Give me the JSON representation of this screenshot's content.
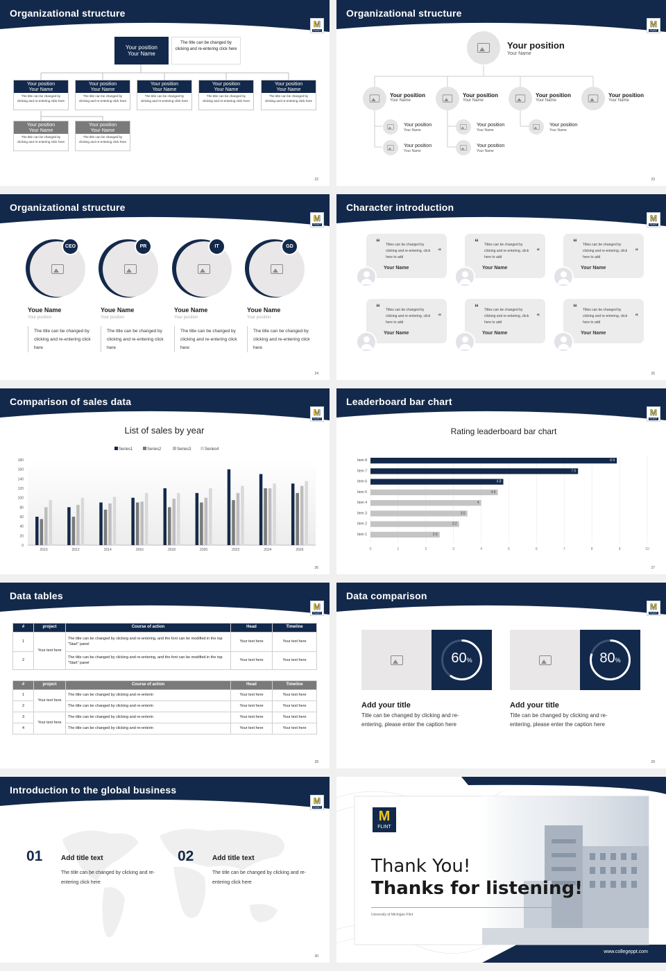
{
  "logo": {
    "letter": "M",
    "word": "FLINT"
  },
  "colors": {
    "navy": "#13294b",
    "grey": "#7a7a7a",
    "gold": "#f0c419",
    "light": "#e9e7e7"
  },
  "s22": {
    "title": "Organizational structure",
    "page": "22",
    "top": {
      "position": "Your position",
      "name": "Your Name",
      "text": "The title can be changed by clicking and re-entering click here"
    },
    "row1": [
      {
        "position": "Your position",
        "name": "Your Name",
        "text": "The title can be changed by clicking and re-entering click here"
      },
      {
        "position": "Your position",
        "name": "Your Name",
        "text": "The title can be changed by clicking and re-entering click here"
      },
      {
        "position": "Your position",
        "name": "Your Name",
        "text": "The title can be changed by clicking and re-entering click here"
      },
      {
        "position": "Your position",
        "name": "Your Name",
        "text": "The title can be changed by clicking and re-entering click here"
      },
      {
        "position": "Your position",
        "name": "Your Name",
        "text": "The title can be changed by clicking and re-entering click here"
      }
    ],
    "row2": [
      {
        "position": "Your position",
        "name": "Your Name",
        "text": "The title can be changed by clicking and re-entering click here"
      },
      {
        "position": "Your position",
        "name": "Your Name",
        "text": "The title can be changed by clicking and re-entering click here"
      }
    ]
  },
  "s23": {
    "title": "Organizational structure",
    "page": "23",
    "top": {
      "position": "Your position",
      "name": "Your Name"
    },
    "row1": [
      {
        "position": "Your position",
        "name": "Your Name"
      },
      {
        "position": "Your position",
        "name": "Your Name"
      },
      {
        "position": "Your position",
        "name": "Your Name"
      },
      {
        "position": "Your position",
        "name": "Your Name"
      }
    ],
    "subs": [
      {
        "position": "Your position",
        "name": "Your Name"
      },
      {
        "position": "Your position",
        "name": "Your Name"
      },
      {
        "position": "Your position",
        "name": "Your Name"
      },
      {
        "position": "Your position",
        "name": "Your Name"
      },
      {
        "position": "Your position",
        "name": "Your Name"
      }
    ]
  },
  "s24": {
    "title": "Organizational structure",
    "page": "24",
    "people": [
      {
        "role": "CEO",
        "name": "Youe Name",
        "position": "Your position",
        "text": "The title can be changed by clicking and re-entering click here"
      },
      {
        "role": "PR",
        "name": "Youe Name",
        "position": "Your position",
        "text": "The title can be changed by clicking and re-entering click here"
      },
      {
        "role": "IT",
        "name": "Youe Name",
        "position": "Your position",
        "text": "The title can be changed by clicking and re-entering click here"
      },
      {
        "role": "GD",
        "name": "Youe Name",
        "position": "Your position",
        "text": "The title can be changed by clicking and re-entering click here"
      }
    ]
  },
  "s25": {
    "title": "Character introduction",
    "page": "25",
    "quote_open": "“",
    "quote_close": "”",
    "cards": [
      {
        "text": "Titles can be changed by clicking and re-entering, click here to add",
        "name": "Your Name"
      },
      {
        "text": "Titles can be changed by clicking and re-entering, click here to add",
        "name": "Your Name"
      },
      {
        "text": "Titles can be changed by clicking and re-entering, click here to add",
        "name": "Your Name"
      },
      {
        "text": "Titles can be changed by clicking and re-entering, click here to add",
        "name": "Your Name"
      },
      {
        "text": "Titles can be changed by clicking and re-entering, click here to add",
        "name": "Your Name"
      },
      {
        "text": "Titles can be changed by clicking and re-entering, click here to add",
        "name": "Your Name"
      }
    ]
  },
  "s26": {
    "title": "Comparison of sales data",
    "page": "26"
  },
  "s27": {
    "title": "Leaderboard bar chart",
    "page": "27"
  },
  "chart_data": [
    {
      "type": "bar",
      "title": "List of sales by year",
      "categories": [
        "2010",
        "2012",
        "2014",
        "2016",
        "2018",
        "2020",
        "2022",
        "2024",
        "2026"
      ],
      "series": [
        {
          "name": "Series1",
          "color": "#13294b",
          "values": [
            60,
            80,
            90,
            100,
            120,
            110,
            160,
            150,
            130
          ]
        },
        {
          "name": "Series2",
          "color": "#7a7a7a",
          "values": [
            55,
            60,
            75,
            90,
            80,
            90,
            95,
            120,
            110
          ]
        },
        {
          "name": "Series3",
          "color": "#bdbdbd",
          "values": [
            80,
            85,
            88,
            92,
            98,
            100,
            110,
            120,
            125
          ]
        },
        {
          "name": "Series4",
          "color": "#d9d9d9",
          "values": [
            95,
            100,
            102,
            110,
            110,
            120,
            125,
            130,
            135
          ]
        }
      ],
      "ylim": [
        0,
        180
      ],
      "yticks": [
        "0",
        "20",
        "40",
        "60",
        "80",
        "100",
        "120",
        "140",
        "160",
        "180"
      ],
      "legend": "top",
      "grid": false
    },
    {
      "type": "bar",
      "orientation": "horizontal",
      "title": "Rating leaderboard bar chart",
      "categories": [
        "Item 1",
        "Item 2",
        "Item 3",
        "Item 4",
        "Item 5",
        "Item 6",
        "Item 7",
        "Item 8"
      ],
      "values": [
        2.5,
        3.2,
        3.5,
        4,
        4.6,
        4.8,
        7.5,
        8.9
      ],
      "value_labels": [
        "2.5",
        "3.2",
        "3.5",
        "4",
        "4.6",
        "4.8",
        "7.5",
        "8.9"
      ],
      "highlight_color": "#13294b",
      "base_color": "#c4c4c4",
      "xlim": [
        0,
        10
      ],
      "xticks": [
        "0",
        "1",
        "2",
        "3",
        "4",
        "5",
        "6",
        "7",
        "8",
        "9",
        "10"
      ],
      "grid": true
    }
  ],
  "s28": {
    "title": "Data tables",
    "page": "28",
    "t1": {
      "headers": [
        "#",
        "project",
        "Course of action",
        "Head",
        "Timeline"
      ],
      "project": "Your text here",
      "rows": [
        {
          "num": "1",
          "action": "The title can be changed by clicking and re-entering, and the font can be modified in the top \"Start\" panel",
          "head": "Your text here",
          "time": "Your text here"
        },
        {
          "num": "2",
          "action": "The title can be changed by clicking and re-entering, and the font can be modified in the top \"Start\" panel",
          "head": "Your text here",
          "time": "Your text here"
        }
      ]
    },
    "t2": {
      "headers": [
        "#",
        "project",
        "Course of action",
        "Head",
        "Timeline"
      ],
      "project_a": "Your text here",
      "project_b": "Your text here",
      "rows": [
        {
          "num": "1",
          "action": "The title can be changed by clicking and re-enterin",
          "head": "Your text here",
          "time": "Your text here"
        },
        {
          "num": "2",
          "action": "The title can be changed by clicking and re-enterin",
          "head": "Your text here",
          "time": "Your text here"
        },
        {
          "num": "3",
          "action": "The title can be changed by clicking and re-enterin",
          "head": "Your text here",
          "time": "Your text here"
        },
        {
          "num": "4",
          "action": "The title can be changed by clicking and re-enterin",
          "head": "Your text here",
          "time": "Your text here"
        }
      ]
    }
  },
  "s29": {
    "title": "Data comparison",
    "page": "29",
    "items": [
      {
        "percent": 60,
        "value": "60",
        "unit": "%",
        "title": "Add your title",
        "text": "Title can be changed by clicking and re-entering, please enter the caption here"
      },
      {
        "percent": 80,
        "value": "80",
        "unit": "%",
        "title": "Add your title",
        "text": "Title can be changed by clicking and re-entering, please enter the caption here"
      }
    ]
  },
  "s30": {
    "title": "Introduction to the global business",
    "page": "30",
    "items": [
      {
        "num": "01",
        "title": "Add title text",
        "text": "The title can be changed by clicking and re-entering click here"
      },
      {
        "num": "02",
        "title": "Add title text",
        "text": "The title can be changed by clicking and re-entering click here"
      }
    ]
  },
  "s31": {
    "line1": "Thank You!",
    "line2": "Thanks for listening!",
    "org": "University of Michigan-Flint",
    "url": "www.collegeppt.com"
  }
}
